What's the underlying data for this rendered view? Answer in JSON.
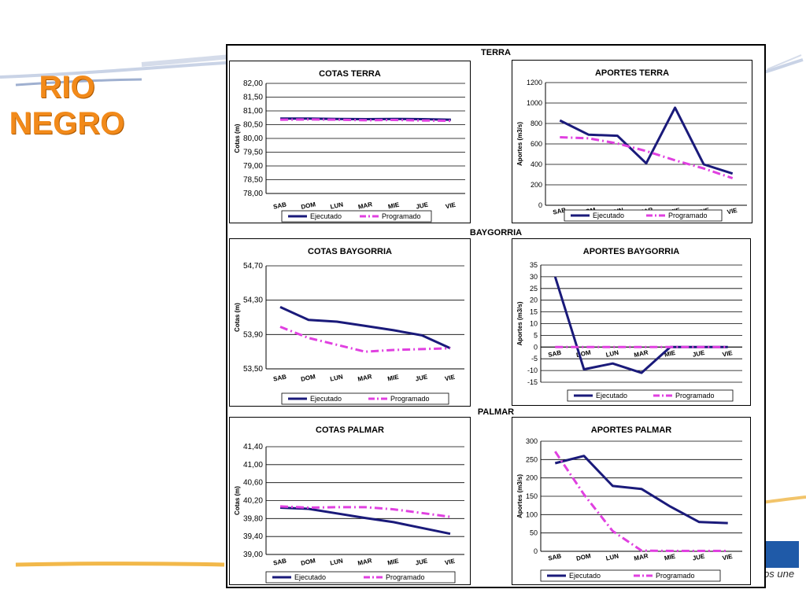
{
  "slide": {
    "title_line1": "RIO",
    "title_line2": "NEGRO",
    "logo_text": "e nos une",
    "colors": {
      "title": "#f28a1a",
      "executed": "#1a1a7a",
      "programmed": "#e040e0",
      "logo": "#1f5aa8"
    }
  },
  "sections": {
    "terra": "TERRA",
    "baygorria": "BAYGORRIA",
    "palmar": "PALMAR"
  },
  "legend": {
    "executed": "Ejecutado",
    "programmed": "Programado"
  },
  "chart_data": [
    {
      "id": "cotas-terra",
      "type": "line",
      "title": "COTAS TERRA",
      "ylabel": "Cotas (m)",
      "categories": [
        "SAB",
        "DOM",
        "LUN",
        "MAR",
        "MIE",
        "JUE",
        "VIE"
      ],
      "ylim": [
        78,
        82
      ],
      "yticks": [
        "78,00",
        "78,50",
        "79,00",
        "79,50",
        "80,00",
        "80,50",
        "81,00",
        "81,50",
        "82,00"
      ],
      "series": [
        {
          "name": "Ejecutado",
          "values": [
            80.72,
            80.72,
            80.71,
            80.7,
            80.71,
            80.7,
            80.68
          ]
        },
        {
          "name": "Programado",
          "values": [
            80.68,
            80.69,
            80.68,
            80.66,
            80.67,
            80.65,
            80.64
          ]
        }
      ]
    },
    {
      "id": "aportes-terra",
      "type": "line",
      "title": "APORTES TERRA",
      "ylabel": "Aportes (m3/s)",
      "categories": [
        "SAB",
        "DOM",
        "LUN",
        "MAR",
        "MIE",
        "JUE",
        "VIE"
      ],
      "ylim": [
        0,
        1200
      ],
      "yticks": [
        "0",
        "200",
        "400",
        "600",
        "800",
        "1000",
        "1200"
      ],
      "series": [
        {
          "name": "Ejecutado",
          "values": [
            830,
            690,
            680,
            410,
            955,
            400,
            310
          ]
        },
        {
          "name": "Programado",
          "values": [
            665,
            655,
            605,
            530,
            440,
            360,
            265
          ]
        }
      ]
    },
    {
      "id": "cotas-baygorria",
      "type": "line",
      "title": "COTAS BAYGORRIA",
      "ylabel": "Cotas (m)",
      "categories": [
        "SAB",
        "DOM",
        "LUN",
        "MAR",
        "MIE",
        "JUE",
        "VIE"
      ],
      "ylim": [
        53.5,
        54.7
      ],
      "yticks": [
        "53,50",
        "53,90",
        "54,30",
        "54,70"
      ],
      "series": [
        {
          "name": "Ejecutado",
          "values": [
            54.22,
            54.07,
            54.05,
            54.0,
            53.95,
            53.89,
            53.74
          ]
        },
        {
          "name": "Programado",
          "values": [
            53.99,
            53.86,
            53.78,
            53.7,
            53.72,
            53.73,
            53.74
          ]
        }
      ]
    },
    {
      "id": "aportes-baygorria",
      "type": "line",
      "title": "APORTES BAYGORRIA",
      "ylabel": "Aportes (m3/s)",
      "categories": [
        "SAB",
        "DOM",
        "LUN",
        "MAR",
        "MIE",
        "JUE",
        "VIE"
      ],
      "ylim": [
        -15,
        35
      ],
      "yticks": [
        "-15",
        "-10",
        "-5",
        "0",
        "5",
        "10",
        "15",
        "20",
        "25",
        "30",
        "35"
      ],
      "series": [
        {
          "name": "Ejecutado",
          "values": [
            30,
            -9.5,
            -7,
            -11,
            0,
            0,
            0
          ]
        },
        {
          "name": "Programado",
          "values": [
            0,
            0,
            0,
            0,
            0,
            0,
            0
          ]
        }
      ]
    },
    {
      "id": "cotas-palmar",
      "type": "line",
      "title": "COTAS PALMAR",
      "ylabel": "Cotas (m)",
      "categories": [
        "SAB",
        "DOM",
        "LUN",
        "MAR",
        "MIE",
        "JUE",
        "VIE"
      ],
      "ylim": [
        39.0,
        41.6
      ],
      "yticks": [
        "39,00",
        "39,40",
        "39,80",
        "40,20",
        "40,60",
        "41,00",
        "41,40"
      ],
      "series": [
        {
          "name": "Ejecutado",
          "values": [
            40.13,
            40.1,
            39.99,
            39.88,
            39.78,
            39.64,
            39.5
          ]
        },
        {
          "name": "Programado",
          "values": [
            40.16,
            40.13,
            40.14,
            40.14,
            40.09,
            40.0,
            39.91
          ]
        }
      ]
    },
    {
      "id": "aportes-palmar",
      "type": "line",
      "title": "APORTES PALMAR",
      "ylabel": "Aportes (m3/s)",
      "categories": [
        "SAB",
        "DOM",
        "LUN",
        "MAR",
        "MIE",
        "JUE",
        "VIE"
      ],
      "ylim": [
        0,
        300
      ],
      "yticks": [
        "0",
        "50",
        "100",
        "150",
        "200",
        "250",
        "300"
      ],
      "series": [
        {
          "name": "Ejecutado",
          "values": [
            240,
            260,
            178,
            170,
            122,
            80,
            77
          ]
        },
        {
          "name": "Programado",
          "values": [
            272,
            155,
            55,
            2,
            1,
            1,
            1
          ]
        }
      ]
    }
  ]
}
